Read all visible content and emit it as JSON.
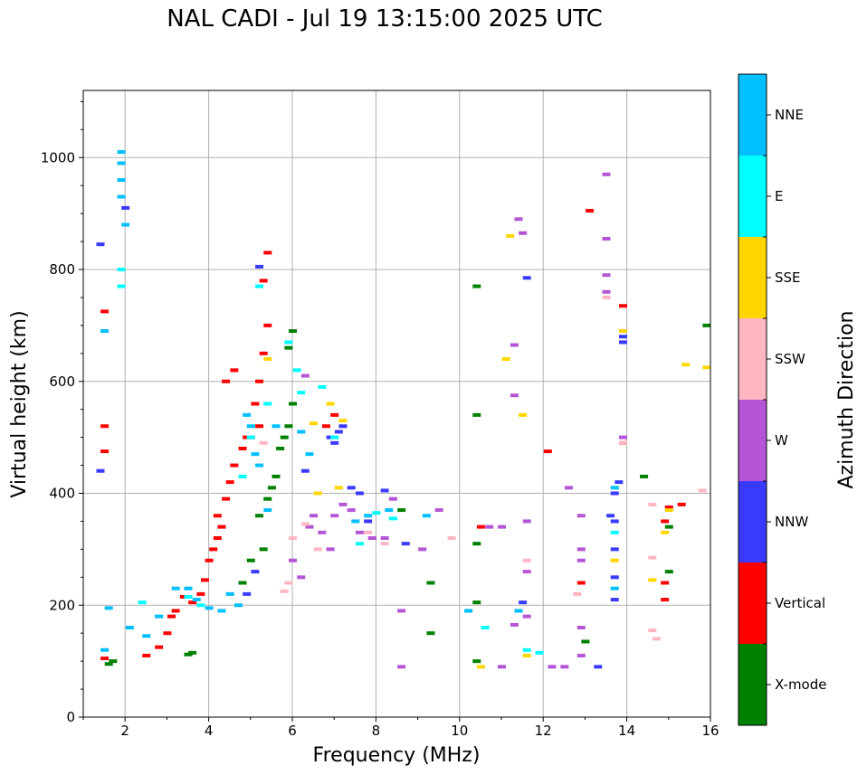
{
  "chart_data": {
    "type": "scatter",
    "title": "NAL CADI - Jul 19 13:15:00 2025 UTC",
    "xlabel": "Frequency (MHz)",
    "ylabel": "Virtual height (km)",
    "xlim": [
      1,
      16
    ],
    "ylim": [
      0,
      1120
    ],
    "xticks": [
      2,
      4,
      6,
      8,
      10,
      12,
      14,
      16
    ],
    "yticks": [
      0,
      200,
      400,
      600,
      800,
      1000
    ],
    "grid": true,
    "colorbar": {
      "label": "Azimuth Direction",
      "categories": [
        {
          "name": "X-mode",
          "color": "#008000"
        },
        {
          "name": "Vertical",
          "color": "#ff0000"
        },
        {
          "name": "NNW",
          "color": "#3a3aff"
        },
        {
          "name": "W",
          "color": "#b455d6"
        },
        {
          "name": "SSW",
          "color": "#ffb6c1"
        },
        {
          "name": "SSE",
          "color": "#ffd700"
        },
        {
          "name": "E",
          "color": "#00ffff"
        },
        {
          "name": "NNE",
          "color": "#00bfff"
        }
      ]
    },
    "series": [
      {
        "name": "X-mode",
        "points": [
          [
            1.6,
            95
          ],
          [
            1.7,
            100
          ],
          [
            3.5,
            112
          ],
          [
            3.6,
            115
          ],
          [
            5.3,
            300
          ],
          [
            5.5,
            410
          ],
          [
            5.6,
            430
          ],
          [
            5.7,
            480
          ],
          [
            5.8,
            500
          ],
          [
            5.9,
            520
          ],
          [
            6.0,
            560
          ],
          [
            6.0,
            690
          ],
          [
            5.9,
            660
          ],
          [
            5.2,
            360
          ],
          [
            5.4,
            390
          ],
          [
            5.0,
            280
          ],
          [
            4.8,
            240
          ],
          [
            9.3,
            150
          ],
          [
            9.3,
            240
          ],
          [
            10.4,
            100
          ],
          [
            10.4,
            205
          ],
          [
            10.4,
            310
          ],
          [
            10.4,
            540
          ],
          [
            10.4,
            770
          ],
          [
            8.6,
            370
          ],
          [
            15.0,
            260
          ],
          [
            15.0,
            340
          ],
          [
            14.4,
            430
          ],
          [
            15.9,
            700
          ],
          [
            13.0,
            135
          ]
        ]
      },
      {
        "name": "Vertical",
        "points": [
          [
            1.5,
            105
          ],
          [
            1.5,
            475
          ],
          [
            1.5,
            520
          ],
          [
            1.5,
            725
          ],
          [
            2.5,
            110
          ],
          [
            2.8,
            125
          ],
          [
            3.0,
            150
          ],
          [
            3.1,
            180
          ],
          [
            3.2,
            190
          ],
          [
            3.4,
            215
          ],
          [
            3.6,
            205
          ],
          [
            3.8,
            220
          ],
          [
            3.9,
            245
          ],
          [
            4.0,
            280
          ],
          [
            4.1,
            300
          ],
          [
            4.2,
            320
          ],
          [
            4.2,
            360
          ],
          [
            4.3,
            340
          ],
          [
            4.4,
            390
          ],
          [
            4.5,
            420
          ],
          [
            4.6,
            450
          ],
          [
            4.8,
            480
          ],
          [
            4.9,
            500
          ],
          [
            5.0,
            500
          ],
          [
            5.2,
            520
          ],
          [
            5.1,
            560
          ],
          [
            5.2,
            600
          ],
          [
            5.3,
            650
          ],
          [
            5.4,
            700
          ],
          [
            5.4,
            830
          ],
          [
            5.3,
            780
          ],
          [
            4.6,
            620
          ],
          [
            4.4,
            600
          ],
          [
            7.0,
            540
          ],
          [
            6.8,
            520
          ],
          [
            10.5,
            340
          ],
          [
            12.1,
            475
          ],
          [
            13.1,
            905
          ],
          [
            13.9,
            735
          ],
          [
            13.9,
            490
          ],
          [
            14.9,
            350
          ],
          [
            15.0,
            375
          ],
          [
            15.3,
            380
          ],
          [
            14.9,
            210
          ],
          [
            14.9,
            240
          ],
          [
            12.9,
            240
          ]
        ]
      },
      {
        "name": "NNW",
        "points": [
          [
            1.4,
            440
          ],
          [
            1.4,
            845
          ],
          [
            2.0,
            910
          ],
          [
            4.9,
            220
          ],
          [
            5.1,
            260
          ],
          [
            5.2,
            805
          ],
          [
            6.3,
            440
          ],
          [
            6.9,
            500
          ],
          [
            7.0,
            490
          ],
          [
            7.1,
            510
          ],
          [
            7.2,
            520
          ],
          [
            7.4,
            410
          ],
          [
            7.6,
            400
          ],
          [
            7.8,
            350
          ],
          [
            7.9,
            320
          ],
          [
            8.2,
            405
          ],
          [
            8.7,
            310
          ],
          [
            11.5,
            205
          ],
          [
            11.6,
            785
          ],
          [
            13.8,
            420
          ],
          [
            13.7,
            400
          ],
          [
            13.7,
            350
          ],
          [
            13.7,
            300
          ],
          [
            13.7,
            250
          ],
          [
            13.7,
            210
          ],
          [
            13.6,
            360
          ],
          [
            13.3,
            90
          ],
          [
            13.9,
            670
          ],
          [
            13.9,
            680
          ]
        ]
      },
      {
        "name": "W",
        "points": [
          [
            6.3,
            610
          ],
          [
            6.4,
            340
          ],
          [
            6.5,
            360
          ],
          [
            6.7,
            330
          ],
          [
            6.9,
            300
          ],
          [
            7.0,
            360
          ],
          [
            7.2,
            380
          ],
          [
            7.4,
            370
          ],
          [
            7.6,
            330
          ],
          [
            7.9,
            320
          ],
          [
            8.2,
            320
          ],
          [
            8.4,
            390
          ],
          [
            8.6,
            190
          ],
          [
            8.6,
            90
          ],
          [
            9.1,
            300
          ],
          [
            9.5,
            370
          ],
          [
            11.0,
            340
          ],
          [
            11.3,
            575
          ],
          [
            11.3,
            665
          ],
          [
            11.4,
            890
          ],
          [
            11.5,
            865
          ],
          [
            11.6,
            350
          ],
          [
            11.6,
            260
          ],
          [
            11.6,
            180
          ],
          [
            12.2,
            90
          ],
          [
            12.5,
            90
          ],
          [
            12.6,
            410
          ],
          [
            12.9,
            360
          ],
          [
            12.9,
            300
          ],
          [
            12.9,
            280
          ],
          [
            12.9,
            160
          ],
          [
            12.9,
            110
          ],
          [
            13.5,
            970
          ],
          [
            13.5,
            855
          ],
          [
            13.5,
            790
          ],
          [
            13.5,
            760
          ],
          [
            13.9,
            500
          ],
          [
            13.9,
            690
          ],
          [
            11.3,
            165
          ],
          [
            10.7,
            340
          ],
          [
            11.0,
            90
          ],
          [
            6.0,
            280
          ],
          [
            6.2,
            250
          ]
        ]
      },
      {
        "name": "SSW",
        "points": [
          [
            5.8,
            225
          ],
          [
            5.9,
            240
          ],
          [
            6.0,
            320
          ],
          [
            6.3,
            345
          ],
          [
            6.6,
            300
          ],
          [
            7.8,
            330
          ],
          [
            8.2,
            310
          ],
          [
            9.8,
            320
          ],
          [
            13.5,
            750
          ],
          [
            13.9,
            490
          ],
          [
            14.6,
            380
          ],
          [
            14.6,
            285
          ],
          [
            14.6,
            155
          ],
          [
            14.7,
            140
          ],
          [
            15.8,
            405
          ],
          [
            11.6,
            280
          ],
          [
            12.8,
            220
          ],
          [
            5.0,
            500
          ],
          [
            5.3,
            490
          ]
        ]
      },
      {
        "name": "SSE",
        "points": [
          [
            5.4,
            640
          ],
          [
            6.5,
            525
          ],
          [
            6.6,
            400
          ],
          [
            6.9,
            560
          ],
          [
            7.1,
            410
          ],
          [
            7.2,
            530
          ],
          [
            11.1,
            640
          ],
          [
            11.2,
            860
          ],
          [
            11.5,
            540
          ],
          [
            10.5,
            90
          ],
          [
            14.6,
            245
          ],
          [
            14.9,
            330
          ],
          [
            15.0,
            370
          ],
          [
            15.4,
            630
          ],
          [
            15.9,
            625
          ],
          [
            13.9,
            690
          ],
          [
            13.7,
            280
          ],
          [
            11.6,
            110
          ]
        ]
      },
      {
        "name": "E",
        "points": [
          [
            1.9,
            770
          ],
          [
            1.9,
            800
          ],
          [
            2.4,
            205
          ],
          [
            3.5,
            215
          ],
          [
            3.8,
            200
          ],
          [
            4.8,
            430
          ],
          [
            5.0,
            500
          ],
          [
            5.2,
            770
          ],
          [
            5.4,
            560
          ],
          [
            5.9,
            670
          ],
          [
            6.1,
            620
          ],
          [
            6.2,
            580
          ],
          [
            6.7,
            590
          ],
          [
            7.0,
            500
          ],
          [
            7.6,
            310
          ],
          [
            8.0,
            365
          ],
          [
            8.4,
            355
          ],
          [
            10.6,
            160
          ],
          [
            11.6,
            120
          ],
          [
            11.9,
            115
          ],
          [
            13.7,
            330
          ]
        ]
      },
      {
        "name": "NNE",
        "points": [
          [
            1.5,
            690
          ],
          [
            1.5,
            120
          ],
          [
            1.6,
            195
          ],
          [
            1.9,
            930
          ],
          [
            1.9,
            960
          ],
          [
            1.9,
            990
          ],
          [
            1.9,
            1010
          ],
          [
            2.0,
            880
          ],
          [
            2.1,
            160
          ],
          [
            2.5,
            145
          ],
          [
            2.8,
            180
          ],
          [
            3.2,
            230
          ],
          [
            3.5,
            230
          ],
          [
            3.7,
            210
          ],
          [
            4.0,
            195
          ],
          [
            4.3,
            190
          ],
          [
            4.5,
            220
          ],
          [
            4.7,
            200
          ],
          [
            4.9,
            540
          ],
          [
            5.0,
            520
          ],
          [
            5.1,
            470
          ],
          [
            5.2,
            450
          ],
          [
            5.4,
            370
          ],
          [
            5.6,
            520
          ],
          [
            6.2,
            510
          ],
          [
            6.4,
            470
          ],
          [
            7.5,
            350
          ],
          [
            7.8,
            360
          ],
          [
            8.3,
            370
          ],
          [
            9.2,
            360
          ],
          [
            10.2,
            190
          ],
          [
            11.4,
            190
          ],
          [
            13.7,
            410
          ],
          [
            13.7,
            230
          ]
        ]
      }
    ]
  }
}
